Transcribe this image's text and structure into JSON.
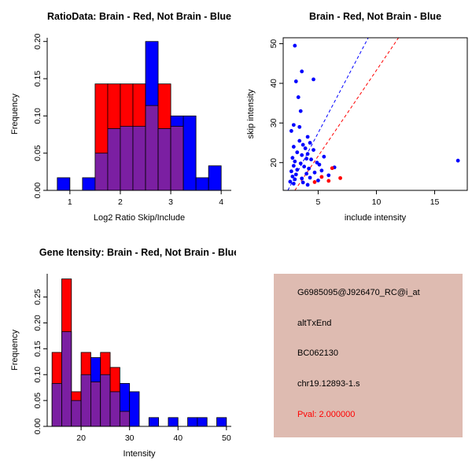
{
  "colors": {
    "red": "#FF0000",
    "blue": "#0000FF",
    "overlap": "#7B1FA2",
    "axis": "#000000",
    "background": "#FFFFFF",
    "info_bg": "#DEBBB1",
    "pval_red": "#FF0000"
  },
  "chart_data": [
    {
      "type": "histogram-overlay",
      "title": "RatioData: Brain - Red, Not Brain - Blue",
      "xlabel": "Log2 Ratio Skip/Include",
      "ylabel": "Frequency",
      "xlim": [
        0.55,
        4.2
      ],
      "ylim": [
        0,
        0.205
      ],
      "xticks": [
        {
          "v": 1,
          "label": "1"
        },
        {
          "v": 2,
          "label": "2"
        },
        {
          "v": 3,
          "label": "3"
        },
        {
          "v": 4,
          "label": "4"
        }
      ],
      "yticks": [
        {
          "v": 0,
          "label": "0.00"
        },
        {
          "v": 0.05,
          "label": "0.05"
        },
        {
          "v": 0.1,
          "label": "0.10"
        },
        {
          "v": 0.15,
          "label": "0.15"
        },
        {
          "v": 0.2,
          "label": "0.20"
        }
      ],
      "bin_width": 0.25,
      "legend_note": "Brain=red, Not Brain=blue, overlap=purple",
      "bins": [
        {
          "x": 0.75,
          "red": 0,
          "blue": 0.017
        },
        {
          "x": 1.25,
          "red": 0,
          "blue": 0.017
        },
        {
          "x": 1.5,
          "red": 0.143,
          "blue": 0.05
        },
        {
          "x": 1.75,
          "red": 0.143,
          "blue": 0.083
        },
        {
          "x": 2.0,
          "red": 0.143,
          "blue": 0.086
        },
        {
          "x": 2.25,
          "red": 0.143,
          "blue": 0.086
        },
        {
          "x": 2.5,
          "red": 0.114,
          "blue": 0.2
        },
        {
          "x": 2.75,
          "red": 0.143,
          "blue": 0.083
        },
        {
          "x": 3.0,
          "red": 0.086,
          "blue": 0.1
        },
        {
          "x": 3.25,
          "red": 0,
          "blue": 0.1
        },
        {
          "x": 3.5,
          "red": 0,
          "blue": 0.017
        },
        {
          "x": 3.75,
          "red": 0,
          "blue": 0.033
        }
      ]
    },
    {
      "type": "scatter",
      "title": "Brain - Red, Not Brain - Blue",
      "xlabel": "include intensity",
      "ylabel": "skip intensity",
      "xlim": [
        2,
        17.8
      ],
      "ylim": [
        13,
        51.5
      ],
      "xticks": [
        {
          "v": 5,
          "label": "5"
        },
        {
          "v": 10,
          "label": "10"
        },
        {
          "v": 15,
          "label": "15"
        }
      ],
      "yticks": [
        {
          "v": 20,
          "label": "20"
        },
        {
          "v": 30,
          "label": "30"
        },
        {
          "v": 40,
          "label": "40"
        },
        {
          "v": 50,
          "label": "50"
        }
      ],
      "blue_points": [
        [
          3.0,
          49.5
        ],
        [
          3.6,
          43.0
        ],
        [
          3.1,
          40.5
        ],
        [
          4.6,
          41.0
        ],
        [
          3.3,
          36.5
        ],
        [
          3.5,
          33.0
        ],
        [
          2.9,
          29.5
        ],
        [
          3.4,
          29.0
        ],
        [
          2.7,
          28.0
        ],
        [
          4.1,
          26.5
        ],
        [
          3.4,
          25.5
        ],
        [
          4.3,
          25.0
        ],
        [
          3.7,
          24.5
        ],
        [
          2.9,
          24.0
        ],
        [
          3.9,
          23.6
        ],
        [
          4.6,
          23.2
        ],
        [
          3.2,
          22.6
        ],
        [
          4.1,
          22.2
        ],
        [
          3.6,
          21.9
        ],
        [
          5.5,
          21.5
        ],
        [
          2.8,
          21.2
        ],
        [
          4.0,
          21.0
        ],
        [
          4.4,
          20.8
        ],
        [
          17.0,
          20.5
        ],
        [
          3.0,
          20.3
        ],
        [
          4.9,
          20.0
        ],
        [
          3.5,
          19.8
        ],
        [
          5.1,
          19.5
        ],
        [
          2.9,
          19.2
        ],
        [
          3.8,
          19.0
        ],
        [
          6.4,
          18.8
        ],
        [
          4.2,
          18.5
        ],
        [
          3.2,
          18.2
        ],
        [
          5.3,
          18.0
        ],
        [
          2.7,
          17.8
        ],
        [
          4.7,
          17.5
        ],
        [
          4.0,
          17.2
        ],
        [
          3.1,
          17.0
        ],
        [
          5.9,
          16.8
        ],
        [
          2.8,
          16.5
        ],
        [
          4.3,
          16.2
        ],
        [
          3.6,
          16.0
        ],
        [
          3.0,
          15.8
        ],
        [
          5.0,
          15.5
        ],
        [
          2.6,
          15.2
        ],
        [
          3.7,
          15.0
        ],
        [
          2.9,
          14.7
        ],
        [
          4.1,
          14.4
        ]
      ],
      "red_points": [
        [
          5.3,
          16.4
        ],
        [
          6.9,
          16.1
        ],
        [
          5.9,
          15.4
        ],
        [
          4.7,
          15.1
        ],
        [
          6.2,
          18.6
        ]
      ],
      "lines": [
        {
          "color": "#0000FF",
          "x1": 2.4,
          "y1": 13,
          "x2": 9.3,
          "y2": 51.5,
          "dash": "4,3"
        },
        {
          "color": "#FF0000",
          "x1": 3.0,
          "y1": 13,
          "x2": 11.9,
          "y2": 51.5,
          "dash": "4,3"
        }
      ]
    },
    {
      "type": "histogram-overlay",
      "title": "Gene Itensity: Brain - Red, Not Brain - Blue",
      "xlabel": "Intensity",
      "ylabel": "Frequency",
      "xlim": [
        13,
        51
      ],
      "ylim": [
        0,
        0.295
      ],
      "xticks": [
        {
          "v": 20,
          "label": "20"
        },
        {
          "v": 30,
          "label": "30"
        },
        {
          "v": 40,
          "label": "40"
        },
        {
          "v": 50,
          "label": "50"
        }
      ],
      "yticks": [
        {
          "v": 0,
          "label": "0.00"
        },
        {
          "v": 0.05,
          "label": "0.05"
        },
        {
          "v": 0.1,
          "label": "0.10"
        },
        {
          "v": 0.15,
          "label": "0.15"
        },
        {
          "v": 0.2,
          "label": "0.20"
        },
        {
          "v": 0.25,
          "label": "0.25"
        }
      ],
      "bin_width": 2,
      "legend_note": "Brain=red, Not Brain=blue, overlap=purple",
      "bins": [
        {
          "x": 14,
          "red": 0.143,
          "blue": 0.083
        },
        {
          "x": 16,
          "red": 0.285,
          "blue": 0.183
        },
        {
          "x": 18,
          "red": 0.067,
          "blue": 0.05
        },
        {
          "x": 20,
          "red": 0.143,
          "blue": 0.1
        },
        {
          "x": 22,
          "red": 0.086,
          "blue": 0.133
        },
        {
          "x": 24,
          "red": 0.143,
          "blue": 0.1
        },
        {
          "x": 26,
          "red": 0.114,
          "blue": 0.067
        },
        {
          "x": 28,
          "red": 0.029,
          "blue": 0.083
        },
        {
          "x": 30,
          "red": 0,
          "blue": 0.067
        },
        {
          "x": 34,
          "red": 0,
          "blue": 0.017
        },
        {
          "x": 38,
          "red": 0,
          "blue": 0.017
        },
        {
          "x": 42,
          "red": 0,
          "blue": 0.017
        },
        {
          "x": 44,
          "red": 0,
          "blue": 0.017
        },
        {
          "x": 48,
          "red": 0,
          "blue": 0.017
        }
      ]
    }
  ],
  "info_panel": {
    "bg": "#DEBBB1",
    "lines": [
      {
        "text": "G6985095@J926470_RC@i_at",
        "color": "#000000"
      },
      {
        "text": "altTxEnd",
        "color": "#000000"
      },
      {
        "text": "BC062130",
        "color": "#000000"
      },
      {
        "text": "chr19.12893-1.s",
        "color": "#000000"
      },
      {
        "text": "Pval: 2.000000",
        "color": "#FF0000"
      }
    ]
  }
}
